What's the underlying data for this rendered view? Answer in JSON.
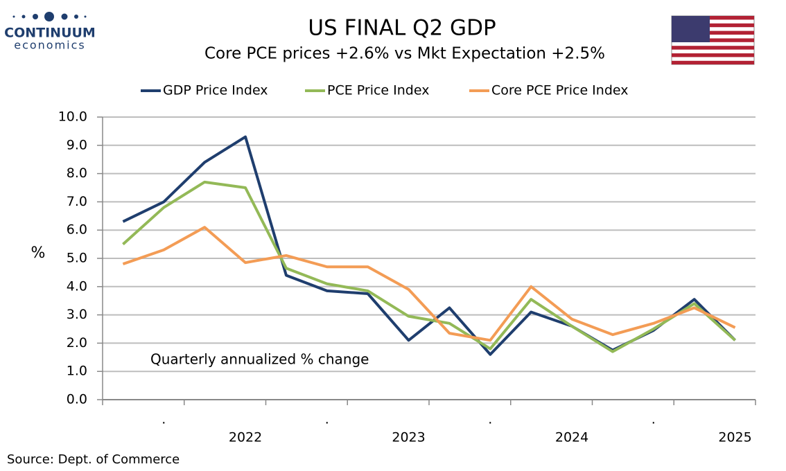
{
  "chart_data": {
    "type": "line",
    "logo": {
      "name": "CONTINUUM",
      "tagline": "economics"
    },
    "title": "US FINAL Q2  GDP",
    "subtitle": "Core PCE prices +2.6% vs Mkt Expectation +2.5%",
    "y_label": "%",
    "annotation": "Quarterly annualized % change",
    "source": "Source: Dept. of Commerce",
    "categories": [
      null,
      ".",
      null,
      "2022",
      null,
      ".",
      null,
      "2023",
      null,
      ".",
      null,
      "2024",
      null,
      ".",
      null,
      "2025"
    ],
    "series": [
      {
        "name": "GDP Price Index",
        "color": "#1f3e6e",
        "values": [
          6.3,
          7.0,
          8.4,
          9.3,
          4.4,
          3.85,
          3.75,
          2.1,
          3.25,
          1.6,
          3.1,
          2.6,
          1.75,
          2.45,
          3.55,
          2.1
        ]
      },
      {
        "name": "PCE Price Index",
        "color": "#93b957",
        "values": [
          5.5,
          6.8,
          7.7,
          7.5,
          4.65,
          4.1,
          3.85,
          2.95,
          2.7,
          1.8,
          3.55,
          2.6,
          1.7,
          2.5,
          3.4,
          2.1
        ]
      },
      {
        "name": "Core PCE Price Index",
        "color": "#f39c55",
        "values": [
          4.8,
          5.3,
          6.1,
          4.85,
          5.1,
          4.7,
          4.7,
          3.9,
          2.35,
          2.1,
          4.0,
          2.85,
          2.3,
          2.7,
          3.25,
          2.55
        ]
      }
    ],
    "ylim": [
      0,
      10
    ],
    "yticks": [
      {
        "value": 0,
        "label": "0.0"
      },
      {
        "value": 1,
        "label": "1.0"
      },
      {
        "value": 2,
        "label": "2.0"
      },
      {
        "value": 3,
        "label": "3.0"
      },
      {
        "value": 4,
        "label": "4.0"
      },
      {
        "value": 5,
        "label": "5.0"
      },
      {
        "value": 6,
        "label": "6.0"
      },
      {
        "value": 7,
        "label": "7.0"
      },
      {
        "value": 8,
        "label": "8.0"
      },
      {
        "value": 9,
        "label": "9.0"
      },
      {
        "value": 10,
        "label": "10.0"
      }
    ],
    "grid": true,
    "legend": "top"
  }
}
